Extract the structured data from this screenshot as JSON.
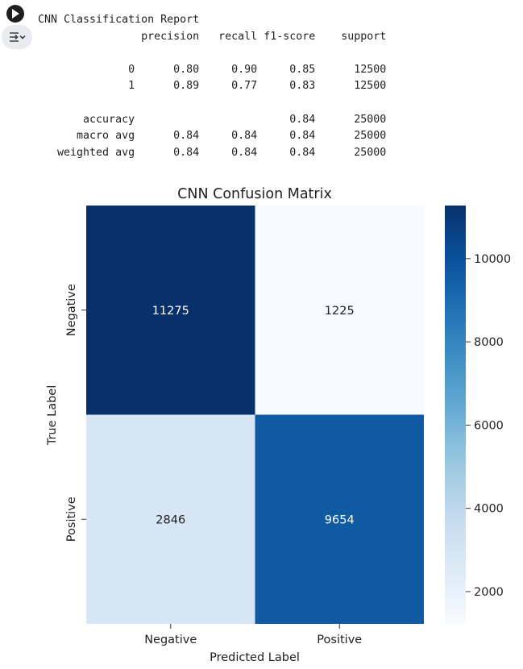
{
  "cell": {
    "run_icon": "play-icon",
    "output_icon": "output-toggle-icon"
  },
  "report": {
    "title": "CNN Classification Report",
    "columns": [
      "precision",
      "recall",
      "f1-score",
      "support"
    ],
    "rows": [
      {
        "label": "0",
        "precision": "0.80",
        "recall": "0.90",
        "f1": "0.85",
        "support": "12500"
      },
      {
        "label": "1",
        "precision": "0.89",
        "recall": "0.77",
        "f1": "0.83",
        "support": "12500"
      },
      {
        "label": "accuracy",
        "precision": "",
        "recall": "",
        "f1": "0.84",
        "support": "25000"
      },
      {
        "label": "macro avg",
        "precision": "0.84",
        "recall": "0.84",
        "f1": "0.84",
        "support": "25000"
      },
      {
        "label": "weighted avg",
        "precision": "0.84",
        "recall": "0.84",
        "f1": "0.84",
        "support": "25000"
      }
    ]
  },
  "chart_data": {
    "type": "heatmap",
    "title": "CNN Confusion Matrix",
    "xlabel": "Predicted Label",
    "ylabel": "True Label",
    "x_categories": [
      "Negative",
      "Positive"
    ],
    "y_categories": [
      "Negative",
      "Positive"
    ],
    "values": [
      [
        11275,
        1225
      ],
      [
        2846,
        9654
      ]
    ],
    "colormap": "Blues",
    "colorbar": {
      "min": 1225,
      "max": 11275,
      "ticks": [
        2000,
        4000,
        6000,
        8000,
        10000
      ]
    },
    "colors": {
      "11275": "#08306b",
      "1225": "#f7fbff",
      "2846": "#d7e6f5",
      "9654": "#0f5aa3"
    }
  }
}
